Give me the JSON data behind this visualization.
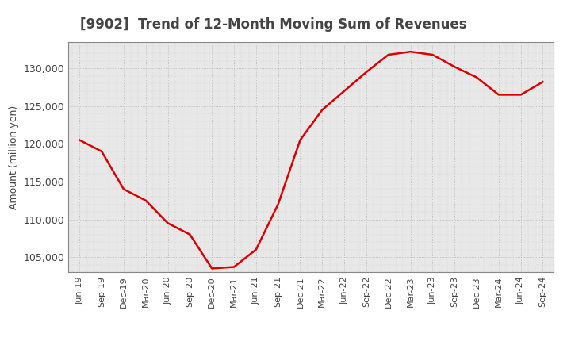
{
  "title": "[9902]  Trend of 12-Month Moving Sum of Revenues",
  "ylabel": "Amount (million yen)",
  "line_color": "#dd0000",
  "line_width": 1.8,
  "background_color": "#ffffff",
  "plot_bg_color": "#e8e8e8",
  "grid_color": "#999999",
  "ylim": [
    103000,
    133500
  ],
  "yticks": [
    105000,
    110000,
    115000,
    120000,
    125000,
    130000
  ],
  "values": [
    120500,
    119000,
    114000,
    112500,
    109500,
    108000,
    103500,
    103700,
    106000,
    112000,
    120500,
    124500,
    127000,
    129500,
    131800,
    132200,
    131800,
    130200,
    128800,
    126500,
    126500,
    128200
  ],
  "xtick_labels": [
    "Jun-19",
    "Sep-19",
    "Dec-19",
    "Mar-20",
    "Jun-20",
    "Sep-20",
    "Dec-20",
    "Mar-21",
    "Jun-21",
    "Sep-21",
    "Dec-21",
    "Mar-22",
    "Jun-22",
    "Sep-22",
    "Dec-22",
    "Mar-23",
    "Jun-23",
    "Sep-23",
    "Dec-23",
    "Mar-24",
    "Jun-24",
    "Sep-24"
  ],
  "title_color": "#444444",
  "tick_color": "#444444",
  "ylabel_fontsize": 9,
  "xtick_fontsize": 8,
  "ytick_fontsize": 9,
  "title_fontsize": 12
}
